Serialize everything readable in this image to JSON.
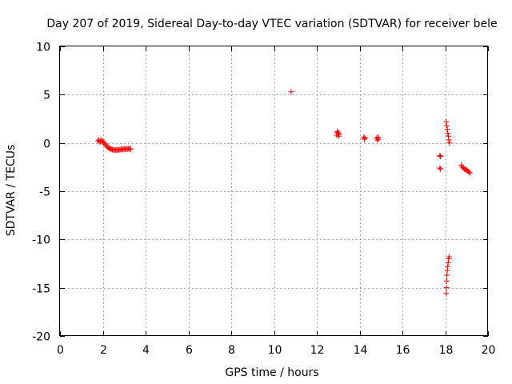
{
  "chart_data": {
    "type": "scatter",
    "title": "Day 207 of 2019, Sidereal Day-to-day VTEC variation (SDTVAR) for receiver bele",
    "xlabel": "GPS time / hours",
    "ylabel": "SDTVAR / TECUs",
    "xlim": [
      0,
      20
    ],
    "ylim": [
      -20,
      10
    ],
    "xticks": [
      0,
      2,
      4,
      6,
      8,
      10,
      12,
      14,
      16,
      18,
      20
    ],
    "yticks": [
      -20,
      -15,
      -10,
      -5,
      0,
      5,
      10
    ],
    "xtick_labels": [
      "0",
      "2",
      "4",
      "6",
      "8",
      "10",
      "12",
      "14",
      "16",
      "18",
      "20"
    ],
    "ytick_labels": [
      "-20",
      "-15",
      "-10",
      "-5",
      "0",
      "5",
      "10"
    ],
    "grid": true,
    "marker": "+",
    "series": [
      {
        "name": "SDTVAR",
        "color": "#ff0000",
        "points": [
          [
            1.78,
            0.2
          ],
          [
            1.82,
            0.3
          ],
          [
            1.86,
            0.1
          ],
          [
            1.9,
            0.2
          ],
          [
            1.95,
            0.3
          ],
          [
            2.0,
            0.1
          ],
          [
            2.05,
            0.0
          ],
          [
            2.1,
            -0.1
          ],
          [
            2.15,
            -0.2
          ],
          [
            2.2,
            -0.4
          ],
          [
            2.25,
            -0.5
          ],
          [
            2.3,
            -0.55
          ],
          [
            2.35,
            -0.6
          ],
          [
            2.4,
            -0.65
          ],
          [
            2.45,
            -0.7
          ],
          [
            2.5,
            -0.7
          ],
          [
            2.55,
            -0.75
          ],
          [
            2.6,
            -0.75
          ],
          [
            2.65,
            -0.7
          ],
          [
            2.7,
            -0.75
          ],
          [
            2.75,
            -0.7
          ],
          [
            2.8,
            -0.7
          ],
          [
            2.85,
            -0.65
          ],
          [
            2.9,
            -0.7
          ],
          [
            2.95,
            -0.65
          ],
          [
            3.0,
            -0.6
          ],
          [
            3.05,
            -0.65
          ],
          [
            3.1,
            -0.6
          ],
          [
            3.15,
            -0.65
          ],
          [
            3.2,
            -0.6
          ],
          [
            3.25,
            -0.6
          ],
          [
            3.3,
            -0.65
          ],
          [
            10.8,
            5.3
          ],
          [
            12.93,
            0.8
          ],
          [
            12.95,
            1.1
          ],
          [
            12.97,
            1.2
          ],
          [
            13.0,
            1.0
          ],
          [
            13.02,
            0.7
          ],
          [
            13.04,
            0.9
          ],
          [
            14.2,
            0.6
          ],
          [
            14.22,
            0.4
          ],
          [
            14.25,
            0.5
          ],
          [
            14.8,
            0.5
          ],
          [
            14.83,
            0.3
          ],
          [
            14.86,
            0.6
          ],
          [
            14.88,
            0.4
          ],
          [
            17.75,
            -1.3
          ],
          [
            17.78,
            -1.4
          ],
          [
            17.75,
            -2.6
          ],
          [
            17.78,
            -2.7
          ],
          [
            18.05,
            2.2
          ],
          [
            18.07,
            1.8
          ],
          [
            18.1,
            1.4
          ],
          [
            18.12,
            1.0
          ],
          [
            18.15,
            0.7
          ],
          [
            18.17,
            0.3
          ],
          [
            18.2,
            0.0
          ],
          [
            18.05,
            -15.6
          ],
          [
            18.06,
            -15.0
          ],
          [
            18.07,
            -14.3
          ],
          [
            18.08,
            -13.7
          ],
          [
            18.1,
            -13.2
          ],
          [
            18.12,
            -12.8
          ],
          [
            18.14,
            -12.4
          ],
          [
            18.16,
            -12.0
          ],
          [
            18.18,
            -11.8
          ],
          [
            18.75,
            -2.3
          ],
          [
            18.8,
            -2.5
          ],
          [
            18.85,
            -2.6
          ],
          [
            18.9,
            -2.7
          ],
          [
            18.95,
            -2.75
          ],
          [
            19.0,
            -2.8
          ],
          [
            19.05,
            -2.9
          ],
          [
            19.1,
            -3.0
          ],
          [
            19.15,
            -3.1
          ]
        ]
      }
    ]
  }
}
